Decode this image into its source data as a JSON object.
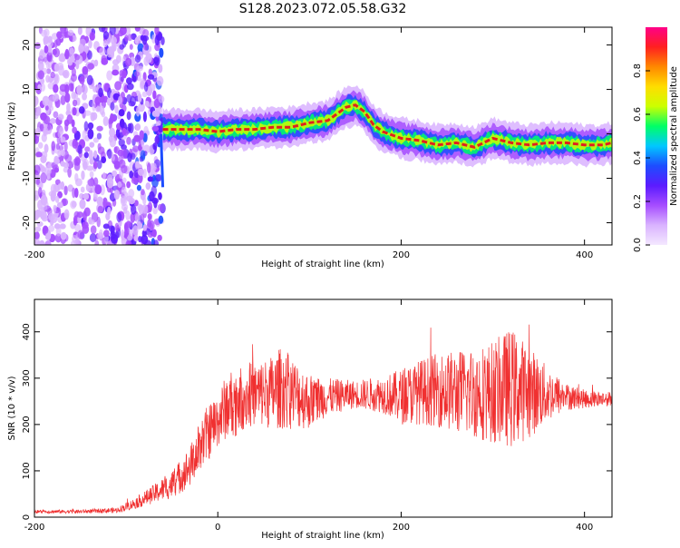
{
  "figure_title": "S128.2023.072.05.58.G32",
  "colors": {
    "snr_line": "#f03030",
    "ridge": "#e02020",
    "axis": "#000000",
    "colorbar": [
      "#f4e8ff",
      "#d9b3ff",
      "#a64dff",
      "#5b1bff",
      "#1d4dff",
      "#00c8ff",
      "#00ff66",
      "#ccff00",
      "#ffdd00",
      "#ff8800",
      "#ff2020",
      "#ff0088"
    ]
  },
  "chart_data": [
    {
      "type": "heatmap",
      "title": "S128.2023.072.05.58.G32",
      "xlabel": "Height of straight line (km)",
      "ylabel": "Frequency (Hz)",
      "xlim": [
        -200,
        430
      ],
      "ylim": [
        -25,
        24
      ],
      "xticks": [
        "-200",
        "0",
        "200",
        "400"
      ],
      "yticks": [
        "20",
        "10",
        "0",
        "-10",
        "-20"
      ],
      "colorbar": {
        "label": "Normalized spectral amplitude",
        "range": [
          0,
          1
        ],
        "ticks": [
          "0.0",
          "0.2",
          "0.4",
          "0.6",
          "0.8"
        ]
      },
      "ridge": {
        "description_points_x": [
          -60,
          -40,
          -20,
          0,
          20,
          40,
          60,
          80,
          100,
          120,
          130,
          140,
          150,
          160,
          170,
          180,
          200,
          220,
          240,
          260,
          280,
          300,
          320,
          340,
          360,
          380,
          400,
          420,
          430
        ],
        "description_points_y": [
          1,
          1,
          1,
          0.5,
          1,
          1,
          1.5,
          1.5,
          2.5,
          3,
          4.5,
          6,
          6.5,
          5,
          2,
          0.5,
          -1,
          -1.5,
          -2.5,
          -2,
          -3,
          -1,
          -2,
          -2.5,
          -2,
          -2,
          -2.5,
          -2.5,
          -2
        ]
      },
      "noise_region": {
        "x_range": [
          -200,
          -60
        ],
        "y_range": [
          -25,
          24
        ]
      }
    },
    {
      "type": "line",
      "xlabel": "Height of straight line (km)",
      "ylabel": "SNR (10 * v/v)",
      "xlim": [
        -200,
        430
      ],
      "ylim": [
        0,
        470
      ],
      "xticks": [
        "-200",
        "0",
        "200",
        "400"
      ],
      "yticks": [
        "0",
        "100",
        "200",
        "300",
        "400"
      ],
      "series": [
        {
          "envelope_x": [
            -200,
            -150,
            -110,
            -90,
            -70,
            -50,
            -30,
            -15,
            0,
            10,
            20,
            30,
            40,
            60,
            70,
            80,
            100,
            120,
            150,
            180,
            200,
            220,
            240,
            260,
            280,
            300,
            310,
            320,
            340,
            360,
            380,
            400,
            430
          ],
          "mean": [
            12,
            12,
            15,
            30,
            50,
            70,
            110,
            170,
            210,
            240,
            250,
            260,
            265,
            270,
            280,
            270,
            250,
            260,
            265,
            265,
            260,
            270,
            275,
            270,
            270,
            270,
            275,
            280,
            270,
            265,
            260,
            255,
            255
          ],
          "spread": [
            4,
            4,
            6,
            12,
            20,
            30,
            45,
            60,
            60,
            70,
            75,
            70,
            70,
            80,
            90,
            80,
            60,
            40,
            30,
            40,
            60,
            70,
            80,
            90,
            100,
            110,
            120,
            130,
            100,
            60,
            30,
            20,
            15
          ]
        }
      ]
    }
  ]
}
